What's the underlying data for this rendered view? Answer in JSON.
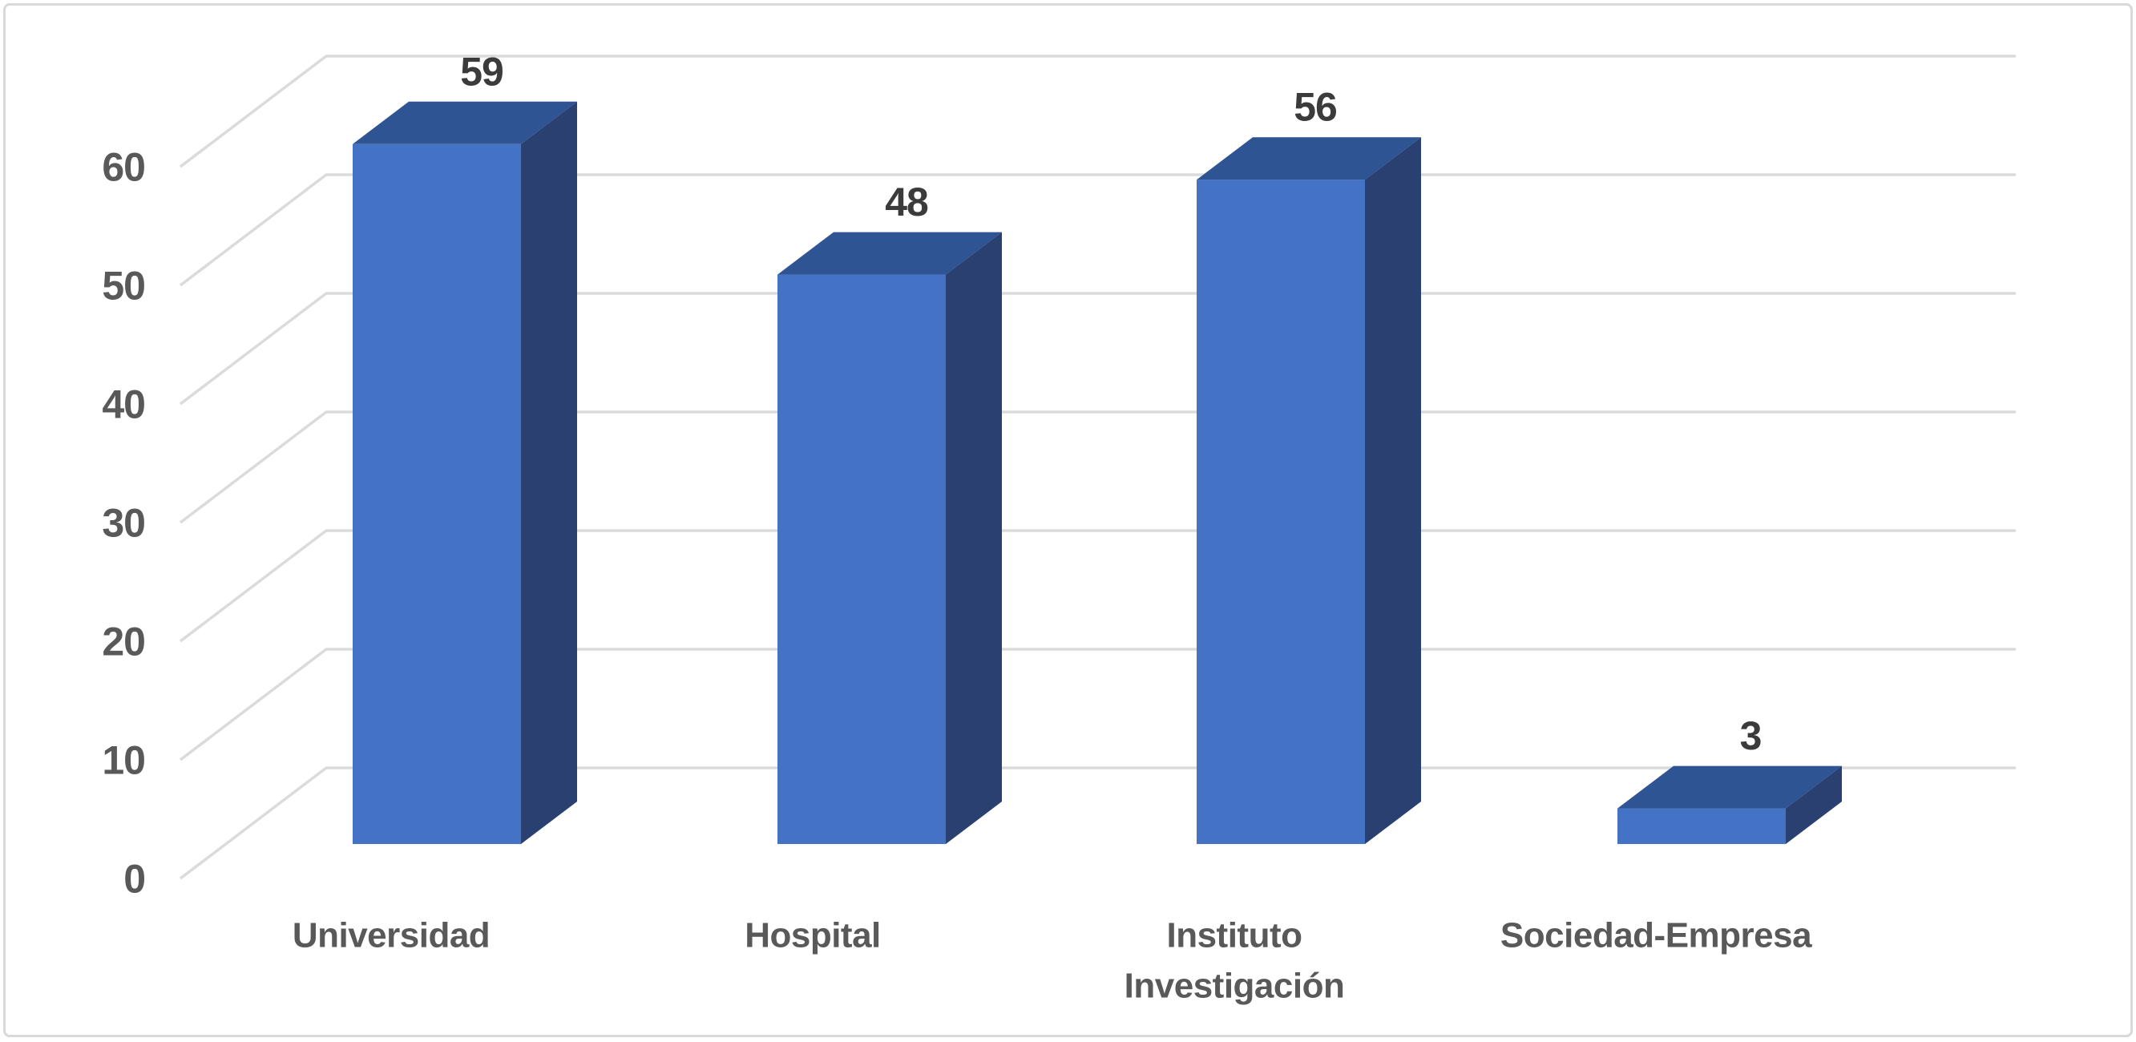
{
  "chart_data": {
    "type": "bar",
    "variant": "3d-column",
    "title": "",
    "xlabel": "",
    "ylabel": "",
    "categories": [
      "Universidad",
      "Hospital",
      "Instituto Investigación",
      "Sociedad-Empresa"
    ],
    "values": [
      59,
      48,
      56,
      3
    ],
    "data_labels": [
      "59",
      "48",
      "56",
      "3"
    ],
    "yticks": [
      0,
      10,
      20,
      30,
      40,
      50,
      60
    ],
    "ylim": [
      0,
      60
    ],
    "grid": true,
    "legend": false,
    "colors": {
      "background": "#FFFFFF",
      "border": "#D9D9D9",
      "gridline": "#DBDBDB",
      "bar_front": "#4472C4",
      "bar_top": "#2F5494",
      "bar_side": "#294070",
      "tick_label": "#595959",
      "category_label": "#595959",
      "data_label": "#3B3B3B"
    }
  }
}
